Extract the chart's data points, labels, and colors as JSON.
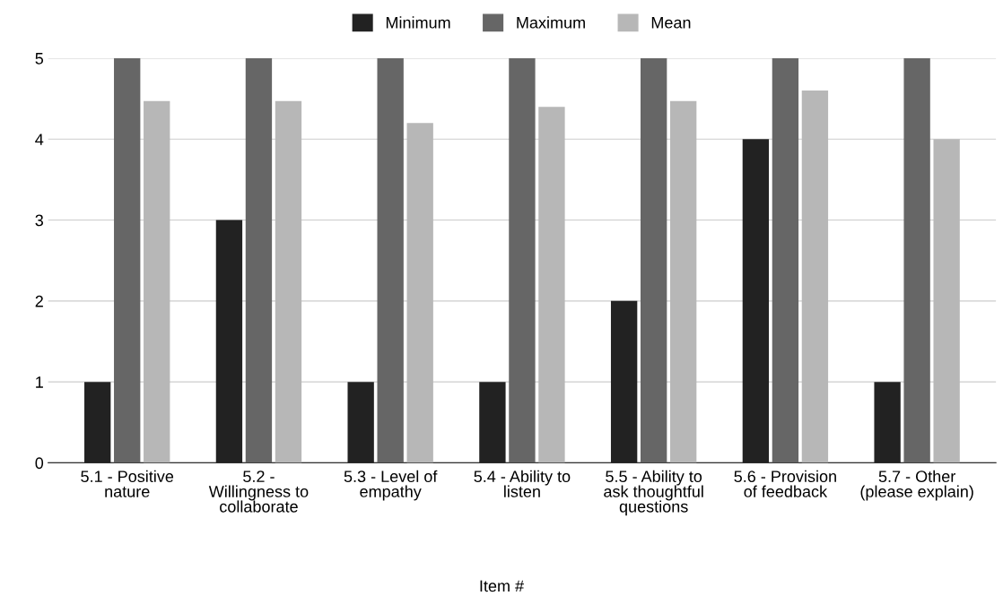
{
  "chart_data": {
    "type": "bar",
    "xlabel": "Item #",
    "categories": [
      "5.1 - Positive nature",
      "5.2 - Willingness to collaborate",
      "5.3 - Level of empathy",
      "5.4 - Ability to listen",
      "5.5 - Ability to ask thoughtful questions",
      "5.6 - Provision of feedback",
      "5.7 - Other (please explain)"
    ],
    "series": [
      {
        "name": "Minimum",
        "color": "#222222",
        "values": [
          1,
          3,
          1,
          1,
          2,
          4,
          1
        ]
      },
      {
        "name": "Maximum",
        "color": "#666666",
        "values": [
          5,
          5,
          5,
          5,
          5,
          5,
          5
        ]
      },
      {
        "name": "Mean",
        "color": "#b7b7b7",
        "values": [
          4.47,
          4.47,
          4.2,
          4.4,
          4.47,
          4.6,
          4.0
        ]
      }
    ],
    "ylim": [
      0,
      5
    ],
    "yticks": [
      0,
      1,
      2,
      3,
      4,
      5
    ],
    "grid": "y",
    "legend": "top"
  }
}
